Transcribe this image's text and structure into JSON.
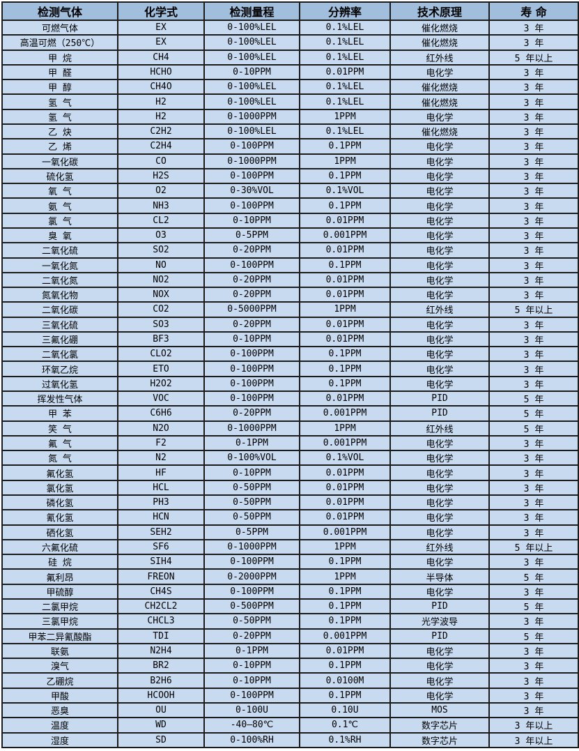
{
  "colors": {
    "header_bg": "#a2bedd",
    "row_bg": "#c8daf0",
    "border": "#1b1b1b"
  },
  "table": {
    "column_keys": [
      "gas",
      "formula",
      "range",
      "resolution",
      "principle",
      "lifespan"
    ],
    "columns": [
      "检测气体",
      "化学式",
      "检测量程",
      "分辨率",
      "技术原理",
      "寿 命"
    ],
    "rows": [
      [
        "可燃气体",
        "EX",
        "0-100%LEL",
        "0.1%LEL",
        "催化燃烧",
        "3 年"
      ],
      [
        "高温可燃（250℃）",
        "EX",
        "0-100%LEL",
        "0.1%LEL",
        "催化燃烧",
        "3 年"
      ],
      [
        "甲 烷",
        "CH4",
        "0-100%LEL",
        "0.1%LEL",
        "红外线",
        "5 年以上"
      ],
      [
        "甲 醛",
        "HCHO",
        "0-10PPM",
        "0.01PPM",
        "电化学",
        "3 年"
      ],
      [
        "甲 醇",
        "CH4O",
        "0-100%LEL",
        "0.1%LEL",
        "催化燃烧",
        "3 年"
      ],
      [
        "氢 气",
        "H2",
        "0-100%LEL",
        "0.1%LEL",
        "催化燃烧",
        "3 年"
      ],
      [
        "氢 气",
        "H2",
        "0-1000PPM",
        "1PPM",
        "电化学",
        "3 年"
      ],
      [
        "乙 炔",
        "C2H2",
        "0-100%LEL",
        "0.1%LEL",
        "催化燃烧",
        "3 年"
      ],
      [
        "乙 烯",
        "C2H4",
        "0-100PPM",
        "0.1PPM",
        "电化学",
        "3 年"
      ],
      [
        "一氧化碳",
        "CO",
        "0-1000PPM",
        "1PPM",
        "电化学",
        "3 年"
      ],
      [
        "硫化氢",
        "H2S",
        "0-100PPM",
        "0.1PPM",
        "电化学",
        "3 年"
      ],
      [
        "氧 气",
        "O2",
        "0-30%VOL",
        "0.1%VOL",
        "电化学",
        "3 年"
      ],
      [
        "氨 气",
        "NH3",
        "0-100PPM",
        "0.1PPM",
        "电化学",
        "3 年"
      ],
      [
        "氯 气",
        "CL2",
        "0-10PPM",
        "0.01PPM",
        "电化学",
        "3 年"
      ],
      [
        "臭 氧",
        "O3",
        "0-5PPM",
        "0.001PPM",
        "电化学",
        "3 年"
      ],
      [
        "二氧化硫",
        "SO2",
        "0-20PPM",
        "0.01PPM",
        "电化学",
        "3 年"
      ],
      [
        "一氧化氮",
        "NO",
        "0-100PPM",
        "0.1PPM",
        "电化学",
        "3 年"
      ],
      [
        "二氧化氮",
        "NO2",
        "0-20PPM",
        "0.01PPM",
        "电化学",
        "3 年"
      ],
      [
        "氮氧化物",
        "NOX",
        "0-20PPM",
        "0.01PPM",
        "电化学",
        "3 年"
      ],
      [
        "二氧化碳",
        "CO2",
        "0-5000PPM",
        "1PPM",
        "红外线",
        "5 年以上"
      ],
      [
        "三氧化硫",
        "SO3",
        "0-20PPM",
        "0.01PPM",
        "电化学",
        "3 年"
      ],
      [
        "三氟化硼",
        "BF3",
        "0-10PPM",
        "0.01PPM",
        "电化学",
        "3 年"
      ],
      [
        "二氧化氯",
        "CLO2",
        "0-100PPM",
        "0.1PPM",
        "电化学",
        "3 年"
      ],
      [
        "环氧乙烷",
        "ETO",
        "0-100PPM",
        "0.1PPM",
        "电化学",
        "3 年"
      ],
      [
        "过氧化氢",
        "H2O2",
        "0-100PPM",
        "0.1PPM",
        "电化学",
        "3 年"
      ],
      [
        "挥发性气体",
        "VOC",
        "0-100PPM",
        "0.01PPM",
        "PID",
        "5 年"
      ],
      [
        "甲 苯",
        "C6H6",
        "0-20PPM",
        "0.001PPM",
        "PID",
        "5 年"
      ],
      [
        "笑 气",
        "N2O",
        "0-1000PPM",
        "1PPM",
        "红外线",
        "5 年"
      ],
      [
        "氟 气",
        "F2",
        "0-1PPM",
        "0.001PPM",
        "电化学",
        "3 年"
      ],
      [
        "氮 气",
        "N2",
        "0-100%VOL",
        "0.1%VOL",
        "电化学",
        "3 年"
      ],
      [
        "氟化氢",
        "HF",
        "0-10PPM",
        "0.01PPM",
        "电化学",
        "3 年"
      ],
      [
        "氯化氢",
        "HCL",
        "0-50PPM",
        "0.01PPM",
        "电化学",
        "3 年"
      ],
      [
        "磷化氢",
        "PH3",
        "0-50PPM",
        "0.01PPM",
        "电化学",
        "3 年"
      ],
      [
        "氰化氢",
        "HCN",
        "0-50PPM",
        "0.01PPM",
        "电化学",
        "3 年"
      ],
      [
        "硒化氢",
        "SEH2",
        "0-5PPM",
        "0.001PPM",
        "电化学",
        "3 年"
      ],
      [
        "六氟化硫",
        "SF6",
        "0-1000PPM",
        "1PPM",
        "红外线",
        "5 年以上"
      ],
      [
        "硅 烷",
        "SIH4",
        "0-100PPM",
        "0.1PPM",
        "电化学",
        "3 年"
      ],
      [
        "氟利昂",
        "FREON",
        "0-2000PPM",
        "1PPM",
        "半导体",
        "5 年"
      ],
      [
        "甲硫醇",
        "CH4S",
        "0-100PPM",
        "0.1PPM",
        "电化学",
        "3 年"
      ],
      [
        "二氯甲烷",
        "CH2CL2",
        "0-500PPM",
        "0.1PPM",
        "PID",
        "5 年"
      ],
      [
        "三氯甲烷",
        "CHCL3",
        "0-50PPM",
        "0.1PPM",
        "光学波导",
        "3 年"
      ],
      [
        "甲苯二异氰酸酯",
        "TDI",
        "0-20PPM",
        "0.001PPM",
        "PID",
        "5 年"
      ],
      [
        "联氨",
        "N2H4",
        "0-1PPM",
        "0.01PPM",
        "电化学",
        "3 年"
      ],
      [
        "溴气",
        "BR2",
        "0-10PPM",
        "0.1PPM",
        "电化学",
        "3 年"
      ],
      [
        "乙硼烷",
        "B2H6",
        "0-10PPM",
        "0.0100M",
        "电化学",
        "3 年"
      ],
      [
        "甲酸",
        "HCOOH",
        "0-100PPM",
        "0.1PPM",
        "电化学",
        "3 年"
      ],
      [
        "恶臭",
        "OU",
        "0-100U",
        "0.10U",
        "MOS",
        "3 年"
      ],
      [
        "温度",
        "WD",
        "-40—80℃",
        "0.1℃",
        "数字芯片",
        "3 年以上"
      ],
      [
        "湿度",
        "SD",
        "0-100%RH",
        "0.1%RH",
        "数字芯片",
        "3 年以上"
      ]
    ]
  }
}
